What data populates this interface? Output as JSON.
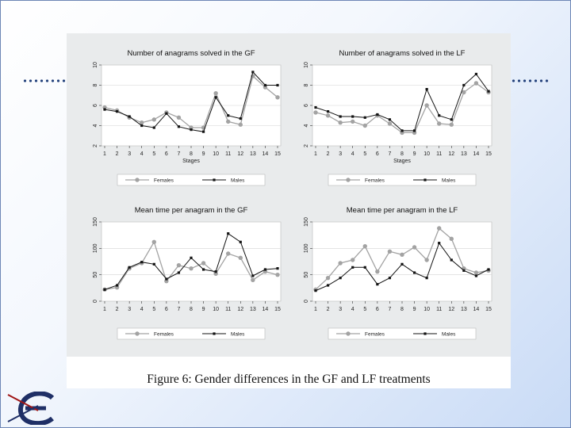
{
  "slide": {
    "caption": "Figure 6:  Gender differences in the GF and LF treatments",
    "logo_icon": "ee-logo-icon",
    "accent_color": "#24427c"
  },
  "chart_data": [
    {
      "type": "line",
      "title": "Number of anagrams solved in the GF",
      "xlabel": "Stages",
      "ylabel": "",
      "categories": [
        "1",
        "2",
        "3",
        "4",
        "5",
        "6",
        "7",
        "8",
        "9",
        "10",
        "11",
        "12",
        "13",
        "14",
        "15"
      ],
      "ylim": [
        2,
        10
      ],
      "yticks": [
        2,
        4,
        6,
        8,
        10
      ],
      "series": [
        {
          "name": "Females",
          "values": [
            5.8,
            5.5,
            4.8,
            4.3,
            4.6,
            5.3,
            4.8,
            3.8,
            3.8,
            7.2,
            4.4,
            4.1,
            8.9,
            7.8,
            6.8
          ]
        },
        {
          "name": "Males",
          "values": [
            5.6,
            5.4,
            4.9,
            4.0,
            3.8,
            5.2,
            3.9,
            3.6,
            3.4,
            6.8,
            5.0,
            4.7,
            9.3,
            8.0,
            8.0
          ]
        }
      ],
      "legend": [
        "Females",
        "Males"
      ]
    },
    {
      "type": "line",
      "title": "Number of anagrams solved in the LF",
      "xlabel": "Stages",
      "ylabel": "",
      "categories": [
        "1",
        "2",
        "3",
        "4",
        "5",
        "6",
        "7",
        "8",
        "9",
        "10",
        "11",
        "12",
        "13",
        "14",
        "15"
      ],
      "ylim": [
        2,
        10
      ],
      "yticks": [
        2,
        4,
        6,
        8,
        10
      ],
      "series": [
        {
          "name": "Females",
          "values": [
            5.3,
            5.0,
            4.3,
            4.4,
            4.0,
            5.0,
            4.2,
            3.3,
            3.3,
            6.0,
            4.2,
            4.1,
            7.3,
            8.2,
            7.3
          ]
        },
        {
          "name": "Males",
          "values": [
            5.8,
            5.4,
            4.9,
            4.9,
            4.8,
            5.1,
            4.6,
            3.5,
            3.5,
            7.6,
            5.0,
            4.6,
            8.0,
            9.1,
            7.4
          ]
        }
      ],
      "legend": [
        "Females",
        "Males"
      ]
    },
    {
      "type": "line",
      "title": "Mean time per anagram in the GF",
      "xlabel": "",
      "ylabel": "",
      "categories": [
        "1",
        "2",
        "3",
        "4",
        "5",
        "6",
        "7",
        "8",
        "9",
        "10",
        "11",
        "12",
        "13",
        "14",
        "15"
      ],
      "ylim": [
        0,
        150
      ],
      "yticks": [
        0,
        50,
        100,
        150
      ],
      "series": [
        {
          "name": "Females",
          "values": [
            22,
            26,
            62,
            72,
            112,
            38,
            68,
            62,
            72,
            52,
            90,
            82,
            40,
            56,
            50
          ]
        },
        {
          "name": "Males",
          "values": [
            22,
            30,
            64,
            74,
            70,
            42,
            54,
            82,
            60,
            56,
            128,
            112,
            48,
            60,
            62
          ]
        }
      ],
      "legend": [
        "Females",
        "Males"
      ]
    },
    {
      "type": "line",
      "title": "Mean time per anagram in the LF",
      "xlabel": "",
      "ylabel": "",
      "categories": [
        "1",
        "2",
        "3",
        "4",
        "5",
        "6",
        "7",
        "8",
        "9",
        "10",
        "11",
        "12",
        "13",
        "14",
        "15"
      ],
      "ylim": [
        0,
        150
      ],
      "yticks": [
        0,
        50,
        100,
        150
      ],
      "series": [
        {
          "name": "Females",
          "values": [
            22,
            44,
            72,
            78,
            104,
            56,
            94,
            88,
            102,
            78,
            138,
            118,
            62,
            54,
            58
          ]
        },
        {
          "name": "Males",
          "values": [
            20,
            30,
            44,
            64,
            64,
            32,
            44,
            70,
            54,
            44,
            110,
            78,
            58,
            48,
            60
          ]
        }
      ],
      "legend": [
        "Females",
        "Males"
      ]
    }
  ]
}
